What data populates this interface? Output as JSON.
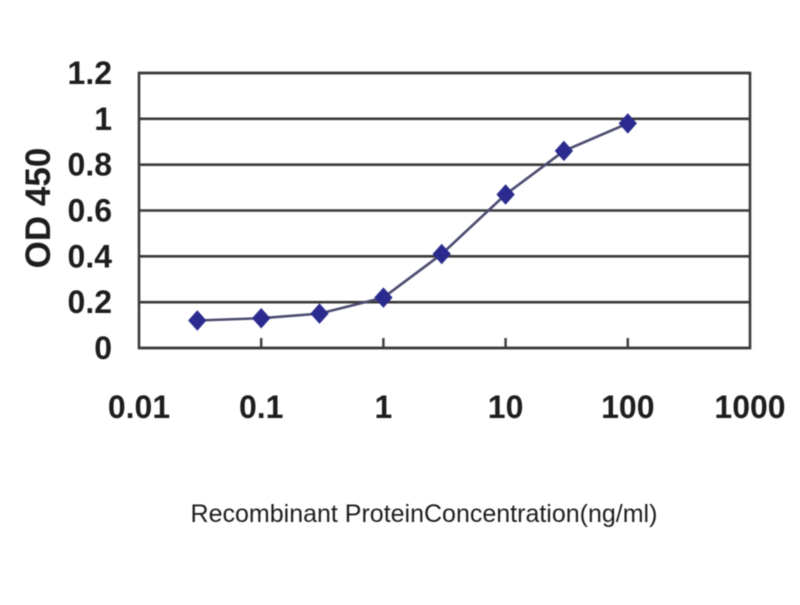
{
  "chart_data": {
    "type": "line",
    "title": "",
    "xlabel": "Recombinant ProteinConcentration(ng/ml)",
    "ylabel": "OD 450",
    "x_scale": "log",
    "x": [
      0.03,
      0.1,
      0.3,
      1,
      3,
      10,
      30,
      100
    ],
    "y": [
      0.12,
      0.13,
      0.15,
      0.22,
      0.41,
      0.67,
      0.86,
      0.98
    ],
    "x_ticks": [
      0.01,
      0.1,
      1,
      10,
      100,
      1000
    ],
    "x_tick_labels": [
      "0.01",
      "0.1",
      "1",
      "10",
      "100",
      "1000"
    ],
    "y_ticks": [
      0,
      0.2,
      0.4,
      0.6,
      0.8,
      1,
      1.2
    ],
    "y_tick_labels": [
      "0",
      "0.2",
      "0.4",
      "0.6",
      "0.8",
      "1",
      "1.2"
    ],
    "xlim": [
      0.01,
      1000
    ],
    "ylim": [
      0,
      1.2
    ],
    "grid": "horizontal",
    "legend": "none",
    "marker": "diamond",
    "colors": {
      "marker": "#2b2b8f",
      "line": "#4b4b70",
      "grid": "#3a3a3a",
      "text": "#1d1d1d",
      "background": "#ffffff"
    }
  }
}
